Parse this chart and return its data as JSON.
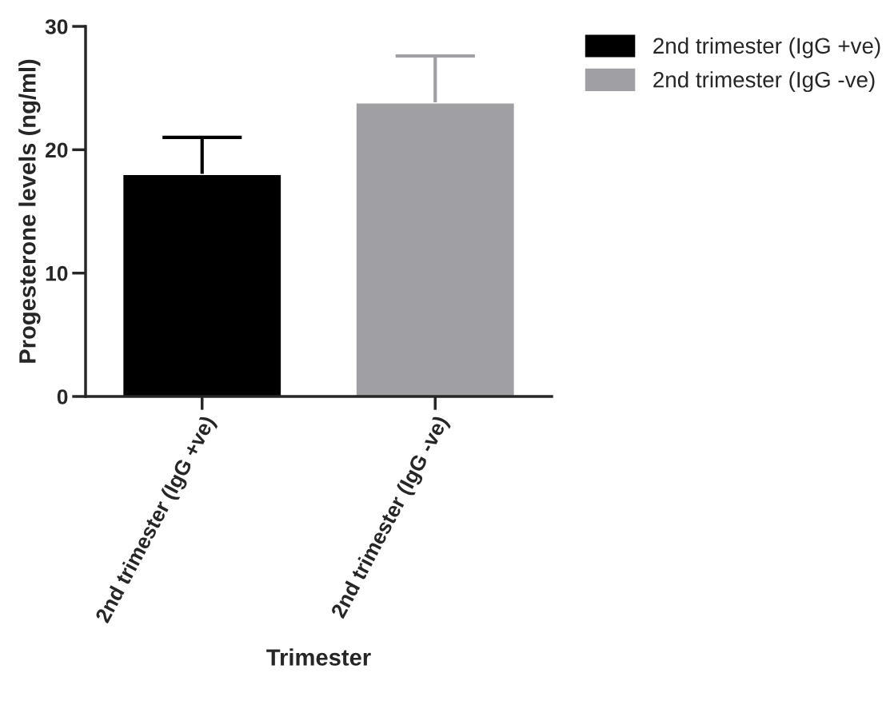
{
  "chart_data": {
    "type": "bar",
    "xlabel": "Trimester",
    "ylabel": "Progesterone levels (ng/ml)",
    "categories": [
      "2nd trimester (IgG +ve)",
      "2nd trimester (IgG -ve)"
    ],
    "series": [
      {
        "name": "2nd trimester (IgG +ve)",
        "color": "#000000",
        "values": [
          18.0,
          null
        ],
        "errors": [
          [
            18.0,
            21.0
          ],
          null
        ]
      },
      {
        "name": "2nd trimester (IgG -ve)",
        "color": "#a0a0a4",
        "values": [
          null,
          23.8
        ],
        "errors": [
          null,
          [
            23.8,
            27.6
          ]
        ]
      }
    ],
    "ylim": [
      0,
      30
    ],
    "yticks": [
      0,
      10,
      20,
      30
    ],
    "grid": false,
    "legend": "top right"
  }
}
